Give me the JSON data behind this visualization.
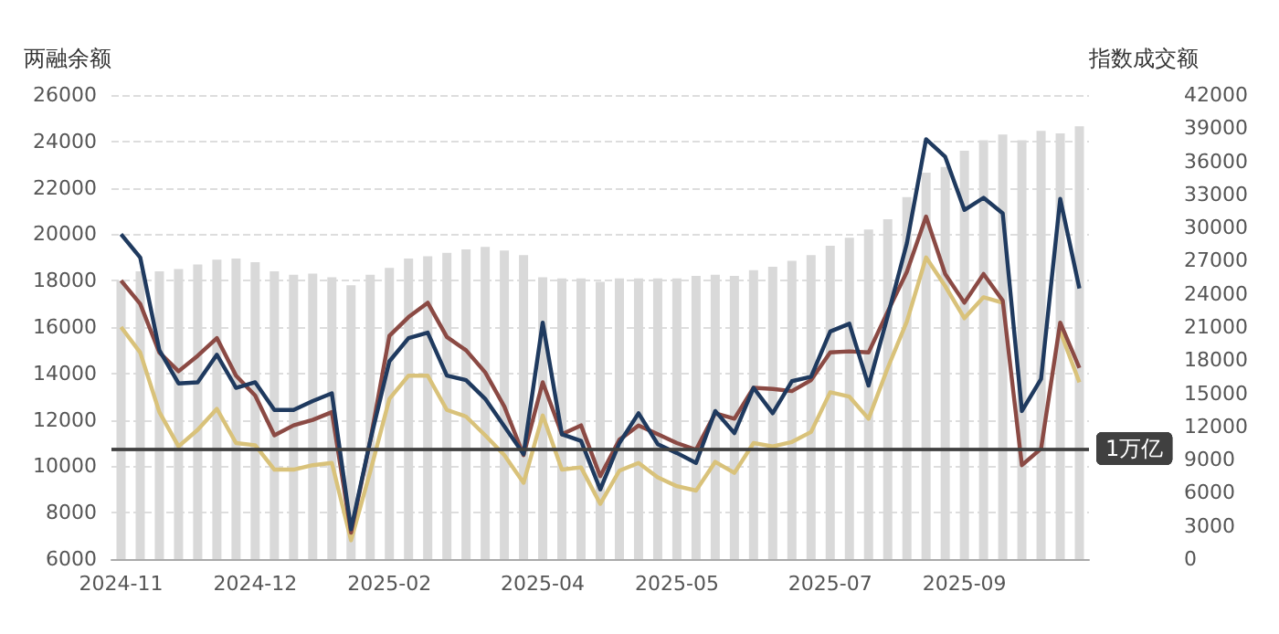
{
  "chart_data": {
    "type": "bar",
    "ylabel": "两融余额",
    "y2label": "指数成交额",
    "categories": [
      "2024-11",
      null,
      null,
      null,
      null,
      null,
      null,
      "2024-12",
      null,
      null,
      null,
      null,
      null,
      null,
      "2025-02",
      null,
      null,
      null,
      null,
      null,
      null,
      null,
      "2025-04",
      null,
      null,
      null,
      null,
      null,
      null,
      "2025-05",
      null,
      null,
      null,
      null,
      null,
      null,
      null,
      "2025-07",
      null,
      null,
      null,
      null,
      null,
      null,
      "2025-09",
      null,
      null,
      null,
      null,
      null,
      null
    ],
    "series": [
      {
        "color": "#d9d9d9",
        "values": [
          18000,
          18400,
          18400,
          18500,
          18700,
          18900,
          18950,
          18800,
          18400,
          18250,
          18300,
          18150,
          17800,
          18250,
          18550,
          18950,
          19050,
          19200,
          19350,
          19450,
          19300,
          19100,
          18150,
          18100,
          18100,
          17950,
          18100,
          18100,
          18100,
          18100,
          18200,
          18250,
          18200,
          18450,
          18600,
          18850,
          19100,
          19500,
          19850,
          20200,
          20650,
          21600,
          22650,
          22900,
          23600,
          24050,
          24300,
          24050,
          24450,
          24350,
          24650
        ]
      },
      {
        "type": "line",
        "axis": "y2",
        "color": "#d9c27a",
        "values": [
          21000,
          18700,
          13300,
          10200,
          11700,
          13600,
          10500,
          10300,
          8100,
          8100,
          8500,
          8700,
          1700,
          7900,
          14500,
          16600,
          16600,
          13500,
          12900,
          11200,
          9400,
          6900,
          13000,
          8100,
          8300,
          5000,
          8000,
          8700,
          7400,
          6600,
          6200,
          8800,
          7800,
          10500,
          10200,
          10600,
          11500,
          15100,
          14700,
          12700,
          17300,
          21500,
          27300,
          24700,
          21800,
          23700,
          23200,
          null,
          null,
          20600,
          16000
        ]
      },
      {
        "type": "line",
        "axis": "y2",
        "color": "#8b4a44",
        "values": [
          25200,
          23100,
          18700,
          17000,
          18400,
          20000,
          16600,
          14800,
          11200,
          12100,
          12600,
          13300,
          2400,
          10700,
          20200,
          21900,
          23200,
          20100,
          18900,
          16900,
          13800,
          9400,
          16000,
          11300,
          12100,
          7500,
          10800,
          12100,
          11300,
          10500,
          9900,
          13200,
          12700,
          15500,
          15400,
          15200,
          16200,
          18700,
          18800,
          18700,
          22400,
          26000,
          31000,
          25800,
          23200,
          25800,
          23400,
          8500,
          10000,
          21400,
          17300
        ]
      },
      {
        "type": "line",
        "axis": "y2",
        "color": "#1f3a5f",
        "values": [
          29400,
          27300,
          18900,
          15900,
          16000,
          18500,
          15500,
          16000,
          13500,
          13500,
          14300,
          15000,
          2700,
          10700,
          17900,
          20000,
          20500,
          16600,
          16200,
          14500,
          12000,
          9500,
          21400,
          11300,
          10700,
          6300,
          10500,
          13200,
          10400,
          9600,
          8700,
          13400,
          11400,
          15500,
          13200,
          16100,
          16500,
          20600,
          21300,
          15700,
          22000,
          28600,
          38000,
          36400,
          31600,
          32700,
          31300,
          13400,
          16300,
          32600,
          24500
        ]
      }
    ],
    "ylim": [
      6000,
      26000
    ],
    "yticks": [
      6000,
      8000,
      10000,
      12000,
      14000,
      16000,
      18000,
      20000,
      22000,
      24000,
      26000
    ],
    "y2lim": [
      0,
      42000
    ],
    "y2ticks": [
      0,
      3000,
      6000,
      9000,
      12000,
      15000,
      18000,
      21000,
      24000,
      27000,
      30000,
      33000,
      36000,
      39000,
      42000
    ],
    "ref_lines": [
      {
        "axis": "y2",
        "value": 10000,
        "label": "1万亿",
        "color": "#404040"
      }
    ],
    "grid": "y",
    "marker": "none",
    "line_style": "solid"
  }
}
